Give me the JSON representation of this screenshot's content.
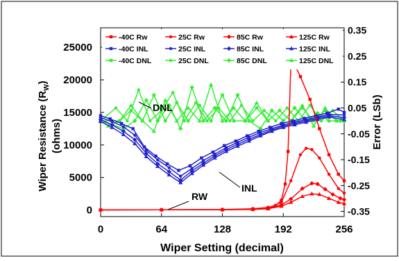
{
  "chart_data": {
    "type": "line",
    "xlabel": "Wiper Setting (decimal)",
    "ylabel_left_line1": "Wiper Resistance (R",
    "ylabel_left_sub": "W",
    "ylabel_left_close": ")",
    "ylabel_left_line2": "(ohms)",
    "ylabel_right": "Error (LSb)",
    "xlim": [
      0,
      256
    ],
    "ylim_left": [
      -1000,
      28000
    ],
    "ylim_right": [
      -0.37,
      0.36
    ],
    "x_ticks": [
      "0",
      "64",
      "128",
      "192",
      "256"
    ],
    "x_tick_values": [
      0,
      64,
      128,
      192,
      256
    ],
    "y_left_ticks": [
      "0",
      "5000",
      "10000",
      "15000",
      "20000",
      "25000"
    ],
    "y_left_tick_values": [
      0,
      5000,
      10000,
      15000,
      20000,
      25000
    ],
    "y_right_ticks": [
      "-0.35",
      "-0.25",
      "-0.15",
      "-0.05",
      "0.05",
      "0.15",
      "0.25",
      "0.35"
    ],
    "y_right_tick_values": [
      -0.35,
      -0.25,
      -0.15,
      -0.05,
      0.05,
      0.15,
      0.25,
      0.35
    ],
    "legend": {
      "placement": "top",
      "rows": [
        [
          "-40C Rw",
          "25C Rw",
          "85C Rw",
          "125C Rw"
        ],
        [
          "-40C INL",
          "25C INL",
          "85C INL",
          "125C INL"
        ],
        [
          "-40C DNL",
          "25C DNL",
          "85C DNL",
          "125C DNL"
        ]
      ]
    },
    "annotations": {
      "dnl": "DNL",
      "inl": "INL",
      "rw": "RW"
    },
    "colors": {
      "rw": "#ff0000",
      "inl": "#2222cc",
      "dnl": "#33ee33"
    },
    "series": [
      {
        "name": "-40C Rw",
        "group": "rw",
        "axis": "left",
        "x": [
          0,
          64,
          128,
          160,
          176,
          184,
          190,
          194,
          197,
          200,
          205,
          210,
          220,
          230,
          240,
          250,
          256
        ],
        "y": [
          30,
          50,
          80,
          200,
          400,
          700,
          1500,
          4000,
          9000,
          22500,
          22000,
          20500,
          17000,
          12500,
          8500,
          5500,
          4500
        ]
      },
      {
        "name": "25C Rw",
        "group": "rw",
        "axis": "left",
        "x": [
          0,
          64,
          128,
          160,
          176,
          190,
          200,
          210,
          216,
          222,
          230,
          240,
          250,
          256
        ],
        "y": [
          25,
          40,
          70,
          150,
          300,
          1200,
          4500,
          8500,
          9500,
          9300,
          8000,
          5500,
          3300,
          2600
        ]
      },
      {
        "name": "85C Rw",
        "group": "rw",
        "axis": "left",
        "x": [
          0,
          64,
          128,
          160,
          176,
          190,
          200,
          212,
          222,
          228,
          236,
          244,
          252,
          256
        ],
        "y": [
          20,
          35,
          60,
          120,
          250,
          800,
          1700,
          3300,
          4100,
          4000,
          3200,
          2400,
          1800,
          1600
        ]
      },
      {
        "name": "125C Rw",
        "group": "rw",
        "axis": "left",
        "x": [
          0,
          64,
          128,
          160,
          176,
          190,
          200,
          212,
          222,
          230,
          240,
          250,
          256
        ],
        "y": [
          15,
          30,
          50,
          100,
          200,
          600,
          1200,
          2100,
          2500,
          2400,
          1800,
          1200,
          1000
        ]
      },
      {
        "name": "-40C INL",
        "group": "inl",
        "axis": "left",
        "x": [
          0,
          10,
          22,
          34,
          46,
          58,
          70,
          82,
          94,
          106,
          118,
          130,
          142,
          154,
          166,
          178,
          190,
          202,
          214,
          226,
          238,
          250,
          256
        ],
        "y": [
          14500,
          14000,
          13300,
          12500,
          9700,
          8300,
          7100,
          6100,
          6800,
          8000,
          8900,
          9900,
          10600,
          11400,
          12100,
          12700,
          13300,
          13700,
          14100,
          14500,
          14900,
          15500,
          15000
        ]
      },
      {
        "name": "25C INL",
        "group": "inl",
        "axis": "left",
        "x": [
          0,
          12,
          24,
          36,
          48,
          60,
          72,
          84,
          96,
          108,
          120,
          132,
          144,
          156,
          168,
          180,
          192,
          204,
          216,
          228,
          240,
          256
        ],
        "y": [
          14200,
          13600,
          12800,
          11500,
          9200,
          7700,
          6500,
          5200,
          6400,
          7600,
          8600,
          9600,
          10400,
          11200,
          11900,
          12500,
          13100,
          13500,
          13900,
          14300,
          14700,
          14600
        ]
      },
      {
        "name": "85C INL",
        "group": "inl",
        "axis": "left",
        "x": [
          0,
          12,
          24,
          36,
          48,
          60,
          72,
          84,
          96,
          108,
          120,
          132,
          144,
          156,
          168,
          180,
          192,
          204,
          216,
          228,
          240,
          256
        ],
        "y": [
          13900,
          13100,
          12100,
          10800,
          8700,
          7100,
          5900,
          4600,
          6000,
          7200,
          8300,
          9300,
          10100,
          10900,
          11600,
          12300,
          12900,
          13300,
          13700,
          14100,
          14500,
          14200
        ]
      },
      {
        "name": "125C INL",
        "group": "inl",
        "axis": "left",
        "x": [
          0,
          12,
          24,
          36,
          48,
          60,
          72,
          84,
          96,
          108,
          120,
          132,
          144,
          156,
          168,
          180,
          192,
          204,
          216,
          228,
          240,
          256
        ],
        "y": [
          13600,
          12700,
          11600,
          10200,
          8200,
          6700,
          5400,
          4200,
          5600,
          6900,
          8000,
          9000,
          9800,
          10600,
          11400,
          12100,
          12700,
          13100,
          13500,
          13900,
          14300,
          13900
        ]
      },
      {
        "name": "-40C DNL",
        "group": "dnl",
        "axis": "right",
        "x": [
          0,
          20,
          32,
          44,
          56,
          68,
          80,
          92,
          104,
          116,
          128,
          140,
          152,
          164,
          176,
          188,
          200,
          212,
          224,
          236,
          248,
          256
        ],
        "y": [
          0.0,
          0.0,
          0.04,
          0.0,
          0.1,
          0.0,
          0.07,
          0.0,
          0.06,
          0.0,
          0.1,
          0.0,
          0.0,
          0.05,
          0.0,
          0.04,
          0.0,
          0.05,
          0.0,
          0.04,
          0.0,
          0.0
        ]
      },
      {
        "name": "25C DNL",
        "group": "dnl",
        "axis": "right",
        "x": [
          0,
          16,
          28,
          40,
          52,
          64,
          76,
          88,
          100,
          112,
          124,
          136,
          148,
          160,
          172,
          184,
          196,
          208,
          220,
          232,
          244,
          256
        ],
        "y": [
          0.0,
          0.05,
          0.0,
          0.12,
          0.0,
          0.04,
          0.11,
          0.0,
          0.07,
          0.0,
          0.05,
          0.0,
          0.06,
          0.0,
          0.04,
          0.0,
          0.05,
          0.0,
          0.06,
          0.0,
          0.04,
          0.0
        ]
      },
      {
        "name": "85C DNL",
        "group": "dnl",
        "axis": "right",
        "x": [
          0,
          24,
          36,
          48,
          60,
          72,
          84,
          96,
          108,
          120,
          132,
          144,
          156,
          168,
          180,
          192,
          204,
          216,
          228,
          240,
          252,
          256
        ],
        "y": [
          0.0,
          -0.03,
          0.0,
          0.08,
          0.0,
          0.06,
          -0.03,
          0.13,
          0.0,
          0.05,
          0.0,
          0.1,
          0.0,
          -0.03,
          0.04,
          0.0,
          0.05,
          0.0,
          0.03,
          0.0,
          0.0,
          0.0
        ]
      },
      {
        "name": "125C DNL",
        "group": "dnl",
        "axis": "right",
        "x": [
          0,
          8,
          20,
          32,
          44,
          56,
          68,
          80,
          92,
          104,
          116,
          128,
          140,
          152,
          164,
          176,
          188,
          200,
          212,
          224,
          236,
          248,
          256
        ],
        "y": [
          0.0,
          -0.02,
          0.0,
          0.06,
          0.0,
          -0.04,
          0.08,
          0.0,
          0.05,
          0.0,
          0.14,
          0.0,
          0.05,
          0.0,
          0.07,
          0.0,
          0.04,
          0.0,
          0.06,
          -0.02,
          0.05,
          0.0,
          0.0
        ]
      }
    ]
  }
}
